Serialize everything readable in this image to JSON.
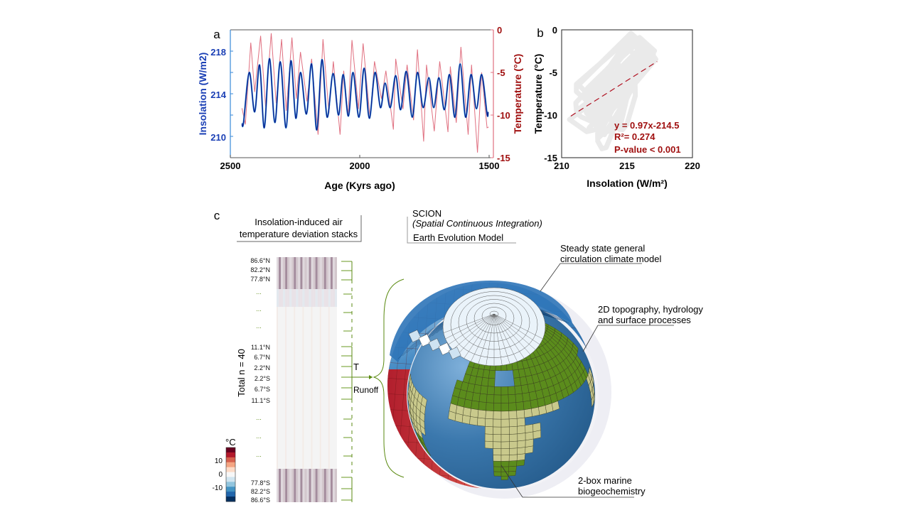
{
  "panels": {
    "a": "a",
    "b": "b",
    "c": "c"
  },
  "colors": {
    "insolation": "#0a1a8a",
    "insolation_axis": "#1a3fb5",
    "temperature": "#e07080",
    "temperature_axis": "#a01010",
    "cloud": "#e6e6e6",
    "regression": "#b01020",
    "bracket": "#5a8a10"
  },
  "chart_data": [
    {
      "panel": "a",
      "type": "line",
      "xlabel": "Age (Kyrs ago)",
      "xlim": [
        2500,
        1485
      ],
      "xticks": [
        "2500",
        "2000",
        "1500"
      ],
      "series": [
        {
          "name": "Insolation (W/m2)",
          "axis": "left",
          "ylabel": "Insolation (W/m2)",
          "ylim": [
            208,
            220
          ],
          "yticks": [
            "218",
            "214",
            "210"
          ],
          "points": [
            [
              2455,
              211.2
            ],
            [
              2449,
              211.3
            ],
            [
              2427,
              216.0
            ],
            [
              2406,
              212.3
            ],
            [
              2387,
              216.7
            ],
            [
              2369,
              210.8
            ],
            [
              2349,
              217.3
            ],
            [
              2328,
              211.3
            ],
            [
              2307,
              217.0
            ],
            [
              2285,
              210.8
            ],
            [
              2266,
              217.1
            ],
            [
              2247,
              211.7
            ],
            [
              2229,
              216.0
            ],
            [
              2206,
              212.1
            ],
            [
              2186,
              216.8
            ],
            [
              2166,
              210.6
            ],
            [
              2146,
              217.2
            ],
            [
              2126,
              211.8
            ],
            [
              2103,
              215.9
            ],
            [
              2082,
              212.0
            ],
            [
              2064,
              215.8
            ],
            [
              2044,
              211.9
            ],
            [
              2026,
              216.0
            ],
            [
              2003,
              211.8
            ],
            [
              1983,
              216.4
            ],
            [
              1963,
              211.7
            ],
            [
              1941,
              216.0
            ],
            [
              1920,
              212.7
            ],
            [
              1902,
              215.0
            ],
            [
              1882,
              212.7
            ],
            [
              1861,
              215.7
            ],
            [
              1842,
              212.5
            ],
            [
              1820,
              216.1
            ],
            [
              1797,
              211.8
            ],
            [
              1777,
              216.0
            ],
            [
              1755,
              212.7
            ],
            [
              1733,
              215.5
            ],
            [
              1714,
              212.7
            ],
            [
              1694,
              215.5
            ],
            [
              1673,
              212.5
            ],
            [
              1653,
              215.8
            ],
            [
              1632,
              211.8
            ],
            [
              1612,
              216.8
            ],
            [
              1591,
              211.8
            ],
            [
              1570,
              215.8
            ],
            [
              1549,
              212.6
            ],
            [
              1529,
              215.8
            ],
            [
              1508,
              212.1
            ],
            [
              1504,
              212.3
            ]
          ]
        },
        {
          "name": "Temperature (°C)",
          "axis": "right",
          "ylabel": "Temperature (°C)",
          "ylim": [
            -15,
            0
          ],
          "yticks": [
            "0",
            "-5",
            "-10",
            "-15"
          ],
          "points": [
            [
              2455,
              -9.2
            ],
            [
              2442,
              -11.1
            ],
            [
              2421,
              -1.5
            ],
            [
              2406,
              -7.3
            ],
            [
              2383,
              -0.7
            ],
            [
              2364,
              -9.0
            ],
            [
              2342,
              -0.4
            ],
            [
              2323,
              -8.6
            ],
            [
              2302,
              -1.1
            ],
            [
              2284,
              -9.5
            ],
            [
              2262,
              -0.9
            ],
            [
              2245,
              -8.1
            ],
            [
              2229,
              -2.6
            ],
            [
              2204,
              -8.4
            ],
            [
              2186,
              -3.4
            ],
            [
              2161,
              -12.3
            ],
            [
              2142,
              -1.1
            ],
            [
              2119,
              -9.8
            ],
            [
              2102,
              -3.7
            ],
            [
              2076,
              -12.3
            ],
            [
              2062,
              -4.8
            ],
            [
              2045,
              -10.1
            ],
            [
              2030,
              -1.2
            ],
            [
              2005,
              -9.3
            ],
            [
              1987,
              -1.6
            ],
            [
              1960,
              -10.4
            ],
            [
              1943,
              -3.7
            ],
            [
              1916,
              -8.1
            ],
            [
              1899,
              -4.8
            ],
            [
              1870,
              -11.7
            ],
            [
              1861,
              -3.4
            ],
            [
              1833,
              -9.3
            ],
            [
              1817,
              -4.1
            ],
            [
              1792,
              -10.6
            ],
            [
              1777,
              -2.3
            ],
            [
              1753,
              -13.1
            ],
            [
              1742,
              -4.1
            ],
            [
              1712,
              -11.9
            ],
            [
              1691,
              -3.7
            ],
            [
              1659,
              -12.0
            ],
            [
              1650,
              -4.3
            ],
            [
              1627,
              -10.9
            ],
            [
              1609,
              -2.0
            ],
            [
              1581,
              -12.3
            ],
            [
              1568,
              -4.1
            ],
            [
              1545,
              -14.4
            ],
            [
              1529,
              -5.0
            ],
            [
              1508,
              -11.5
            ],
            [
              1502,
              -11.4
            ]
          ]
        }
      ]
    },
    {
      "panel": "b",
      "type": "scatter",
      "xlabel": "Insolation (W/m²)",
      "ylabel": "Temperature (°C)",
      "xlim": [
        210,
        220
      ],
      "ylim": [
        -15,
        0
      ],
      "xticks": [
        "210",
        "215",
        "220"
      ],
      "yticks": [
        "0",
        "-5",
        "-10",
        "-15"
      ],
      "regression": {
        "slope": 0.97,
        "intercept": -214.5,
        "x_range": [
          210.7,
          217.3
        ]
      },
      "annotations": [
        "y = 0.97x-214.5",
        "R²= 0.274",
        "P-value < 0.001"
      ]
    }
  ],
  "panel_c": {
    "stack_title": [
      "Insolation-induced air",
      "temperature deviation stacks"
    ],
    "scion": {
      "name": "SCION",
      "expansion": "(Spatial Continuous Integration)",
      "subtitle": "Earth Evolution Model"
    },
    "total_label": "Total n = 40",
    "latitudes": [
      "86.6°N",
      "82.2°N",
      "77.8°N",
      "...",
      "...",
      "...",
      "11.1°N",
      "6.7°N",
      "2.2°N",
      "2.2°S",
      "6.7°S",
      "11.1°S",
      "...",
      "...",
      "...",
      "77.8°S",
      "82.2°S",
      "86.6°S"
    ],
    "outputs": [
      "T",
      "Runoff"
    ],
    "colorbar": {
      "unit": "°C",
      "ticks": [
        "10",
        "0",
        "-10"
      ],
      "colors": [
        "#67001f",
        "#b2182b",
        "#d6604d",
        "#f4a582",
        "#fddbc7",
        "#f7f7f7",
        "#d1e5f0",
        "#92c5de",
        "#4393c3",
        "#2166ac",
        "#053061"
      ]
    },
    "callouts": {
      "gcm": [
        "Steady state general",
        "circulation climate model"
      ],
      "surface": [
        "2D topography, hydrology",
        "and surface processes"
      ],
      "marine": [
        "2-box marine",
        "biogeochemistry"
      ]
    }
  }
}
